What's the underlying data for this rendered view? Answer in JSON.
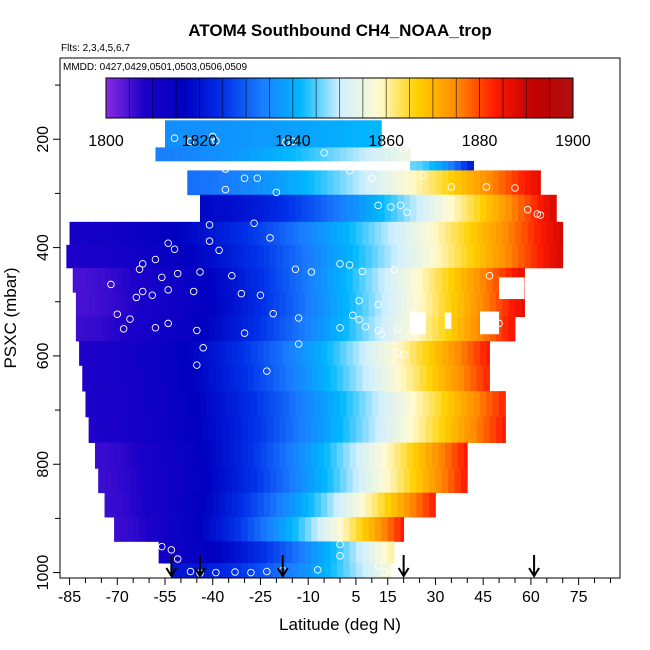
{
  "chart_data": {
    "type": "heatmap",
    "title": "ATOM4 Southbound CH4_NOAA_trop",
    "flights_label": "Flts: 2,3,4,5,6,7",
    "dates_label": "MMDD: 0427,0429,0501,0503,0506,0509",
    "xlabel": "Latitude (deg N)",
    "ylabel": "PSXC (mbar)",
    "xlim": [
      -88,
      88
    ],
    "ylim": [
      1010,
      50
    ],
    "xticks": [
      "-85",
      "-70",
      "-55",
      "-40",
      "-25",
      "-10",
      "5",
      "15",
      "30",
      "45",
      "60",
      "75"
    ],
    "xtick_values": [
      -85,
      -70,
      -55,
      -40,
      -25,
      -10,
      5,
      15,
      30,
      45,
      60,
      75
    ],
    "yticks": [
      "200",
      "400",
      "600",
      "800",
      "1000"
    ],
    "ytick_values": [
      200,
      400,
      600,
      800,
      1000
    ],
    "colorbar": {
      "min": 1800,
      "max": 1900,
      "labels": [
        "1800",
        "1820",
        "1840",
        "1860",
        "1880",
        "1900"
      ],
      "label_values": [
        1800,
        1820,
        1840,
        1860,
        1880,
        1900
      ],
      "colors": [
        "#8a2be2",
        "#1a00c8",
        "#0000c0",
        "#0030e8",
        "#1a7cff",
        "#00b8ff",
        "#cfefff",
        "#fffad0",
        "#ffd000",
        "#ff8c00",
        "#ff1a00",
        "#c00000",
        "#b01010"
      ]
    },
    "bands": [
      {
        "p": 190,
        "lat0": -55,
        "lat1": 13,
        "v0": 1836,
        "v1": 1842
      },
      {
        "p": 240,
        "lat0": -58,
        "lat1": 22,
        "v0": 1834,
        "v1": 1856
      },
      {
        "p": 240,
        "lat0": 22,
        "lat1": 42,
        "v0": 1846,
        "v1": 1818
      },
      {
        "p": 275,
        "lat0": -48,
        "lat1": 63,
        "v0": 1832,
        "v1": 1888
      },
      {
        "p": 330,
        "lat0": -44,
        "lat1": 68,
        "v0": 1818,
        "v1": 1890
      },
      {
        "p": 375,
        "lat0": -85,
        "lat1": 70,
        "v0": 1810,
        "v1": 1890
      },
      {
        "p": 415,
        "lat0": -86,
        "lat1": 70,
        "v0": 1808,
        "v1": 1890
      },
      {
        "p": 460,
        "lat0": -84,
        "lat1": 58,
        "v0": 1805,
        "v1": 1888
      },
      {
        "p": 505,
        "lat0": -83,
        "lat1": 58,
        "v0": 1805,
        "v1": 1888
      },
      {
        "p": 550,
        "lat0": -83,
        "lat1": 55,
        "v0": 1806,
        "v1": 1886
      },
      {
        "p": 595,
        "lat0": -82,
        "lat1": 47,
        "v0": 1808,
        "v1": 1885
      },
      {
        "p": 640,
        "lat0": -81,
        "lat1": 47,
        "v0": 1808,
        "v1": 1884
      },
      {
        "p": 690,
        "lat0": -80,
        "lat1": 52,
        "v0": 1808,
        "v1": 1884
      },
      {
        "p": 735,
        "lat0": -79,
        "lat1": 52,
        "v0": 1808,
        "v1": 1885
      },
      {
        "p": 785,
        "lat0": -77,
        "lat1": 40,
        "v0": 1806,
        "v1": 1885
      },
      {
        "p": 830,
        "lat0": -76,
        "lat1": 40,
        "v0": 1806,
        "v1": 1885
      },
      {
        "p": 875,
        "lat0": -74,
        "lat1": 30,
        "v0": 1806,
        "v1": 1885
      },
      {
        "p": 920,
        "lat0": -71,
        "lat1": 20,
        "v0": 1806,
        "v1": 1885
      },
      {
        "p": 965,
        "lat0": -57,
        "lat1": 17,
        "v0": 1812,
        "v1": 1862
      },
      {
        "p": 1000,
        "lat0": -53,
        "lat1": 16,
        "v0": 1820,
        "v1": 1858
      }
    ],
    "holes": [
      {
        "lat0": 50,
        "lat1": 58,
        "p0": 455,
        "p1": 495
      },
      {
        "lat0": 22,
        "lat1": 27,
        "p0": 520,
        "p1": 560
      },
      {
        "lat0": 33,
        "lat1": 35,
        "p0": 520,
        "p1": 550
      },
      {
        "lat0": 44,
        "lat1": 50,
        "p0": 518,
        "p1": 560
      }
    ],
    "samples": [
      {
        "lat": -52,
        "p": 198
      },
      {
        "lat": -47,
        "p": 204
      },
      {
        "lat": -40,
        "p": 195
      },
      {
        "lat": -39,
        "p": 203
      },
      {
        "lat": -17,
        "p": 205
      },
      {
        "lat": -15,
        "p": 204
      },
      {
        "lat": -5,
        "p": 225
      },
      {
        "lat": 20,
        "p": 218
      },
      {
        "lat": -57,
        "p": 249
      },
      {
        "lat": -53,
        "p": 252
      },
      {
        "lat": -36,
        "p": 255
      },
      {
        "lat": -30,
        "p": 272
      },
      {
        "lat": -26,
        "p": 272
      },
      {
        "lat": -20,
        "p": 298
      },
      {
        "lat": 3,
        "p": 258
      },
      {
        "lat": 10,
        "p": 272
      },
      {
        "lat": 26,
        "p": 267
      },
      {
        "lat": 35,
        "p": 288
      },
      {
        "lat": 46,
        "p": 288
      },
      {
        "lat": 55,
        "p": 290
      },
      {
        "lat": -36,
        "p": 293
      },
      {
        "lat": 12,
        "p": 322
      },
      {
        "lat": 16,
        "p": 325
      },
      {
        "lat": 19,
        "p": 322
      },
      {
        "lat": 21,
        "p": 335
      },
      {
        "lat": 59,
        "p": 330
      },
      {
        "lat": 62,
        "p": 338
      },
      {
        "lat": 63,
        "p": 340
      },
      {
        "lat": -41,
        "p": 358
      },
      {
        "lat": -27,
        "p": 355
      },
      {
        "lat": -54,
        "p": 392
      },
      {
        "lat": -52,
        "p": 403
      },
      {
        "lat": -41,
        "p": 388
      },
      {
        "lat": -38,
        "p": 405
      },
      {
        "lat": -22,
        "p": 382
      },
      {
        "lat": -58,
        "p": 422
      },
      {
        "lat": -62,
        "p": 430
      },
      {
        "lat": -63,
        "p": 440
      },
      {
        "lat": -72,
        "p": 468
      },
      {
        "lat": -56,
        "p": 455
      },
      {
        "lat": -51,
        "p": 448
      },
      {
        "lat": -44,
        "p": 445
      },
      {
        "lat": -34,
        "p": 452
      },
      {
        "lat": -14,
        "p": 440
      },
      {
        "lat": -9,
        "p": 445
      },
      {
        "lat": 0,
        "p": 430
      },
      {
        "lat": 3,
        "p": 432
      },
      {
        "lat": 7,
        "p": 444
      },
      {
        "lat": 17,
        "p": 441
      },
      {
        "lat": 47,
        "p": 452
      },
      {
        "lat": 70,
        "p": 445
      },
      {
        "lat": -62,
        "p": 481
      },
      {
        "lat": -64,
        "p": 492
      },
      {
        "lat": -59,
        "p": 488
      },
      {
        "lat": -54,
        "p": 478
      },
      {
        "lat": -46,
        "p": 481
      },
      {
        "lat": -31,
        "p": 485
      },
      {
        "lat": -25,
        "p": 488
      },
      {
        "lat": 6,
        "p": 498
      },
      {
        "lat": 12,
        "p": 505
      },
      {
        "lat": -70,
        "p": 523
      },
      {
        "lat": -66,
        "p": 532
      },
      {
        "lat": -21,
        "p": 522
      },
      {
        "lat": -13,
        "p": 530
      },
      {
        "lat": 4,
        "p": 525
      },
      {
        "lat": 6,
        "p": 533
      },
      {
        "lat": 23,
        "p": 520
      },
      {
        "lat": 47,
        "p": 525
      },
      {
        "lat": 50,
        "p": 540
      },
      {
        "lat": -68,
        "p": 550
      },
      {
        "lat": -58,
        "p": 548
      },
      {
        "lat": -54,
        "p": 540
      },
      {
        "lat": -45,
        "p": 553
      },
      {
        "lat": -30,
        "p": 558
      },
      {
        "lat": -13,
        "p": 578
      },
      {
        "lat": 0,
        "p": 548
      },
      {
        "lat": 8,
        "p": 546
      },
      {
        "lat": 12,
        "p": 553
      },
      {
        "lat": 18,
        "p": 550
      },
      {
        "lat": 13,
        "p": 560
      },
      {
        "lat": 18,
        "p": 594
      },
      {
        "lat": 20,
        "p": 598
      },
      {
        "lat": -43,
        "p": 585
      },
      {
        "lat": -45,
        "p": 617
      },
      {
        "lat": -23,
        "p": 628
      },
      {
        "lat": -56,
        "p": 952
      },
      {
        "lat": -53,
        "p": 958
      },
      {
        "lat": -51,
        "p": 975
      },
      {
        "lat": -47,
        "p": 998
      },
      {
        "lat": -44,
        "p": 1001
      },
      {
        "lat": -39,
        "p": 1000
      },
      {
        "lat": -33,
        "p": 999
      },
      {
        "lat": -28,
        "p": 1000
      },
      {
        "lat": -23,
        "p": 998
      },
      {
        "lat": -18,
        "p": 996
      },
      {
        "lat": -7,
        "p": 995
      },
      {
        "lat": 0,
        "p": 948
      },
      {
        "lat": 0,
        "p": 969
      },
      {
        "lat": 12,
        "p": 988
      },
      {
        "lat": 14,
        "p": 999
      }
    ],
    "markers_lat": [
      -53,
      -44,
      -18,
      20,
      61
    ]
  }
}
